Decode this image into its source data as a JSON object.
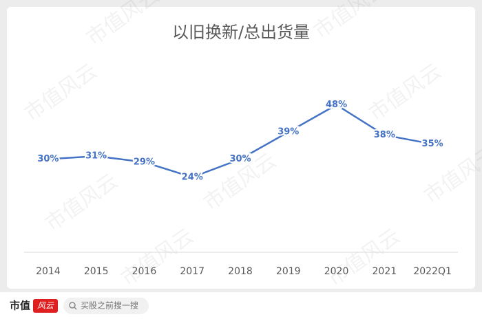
{
  "chart_data": {
    "type": "line",
    "title": "以旧换新/总出货量",
    "categories": [
      "2014",
      "2015",
      "2016",
      "2017",
      "2018",
      "2019",
      "2020",
      "2021",
      "2022Q1"
    ],
    "values": [
      30,
      31,
      29,
      24,
      30,
      39,
      48,
      38,
      35
    ],
    "value_labels": [
      "30%",
      "31%",
      "29%",
      "24%",
      "30%",
      "39%",
      "48%",
      "38%",
      "35%"
    ],
    "color": "#4472c4",
    "ylim": [
      0,
      60
    ]
  },
  "watermark": "市值风云",
  "footer": {
    "brand": "市值",
    "logo": "风云",
    "search": "买股之前搜一搜"
  }
}
